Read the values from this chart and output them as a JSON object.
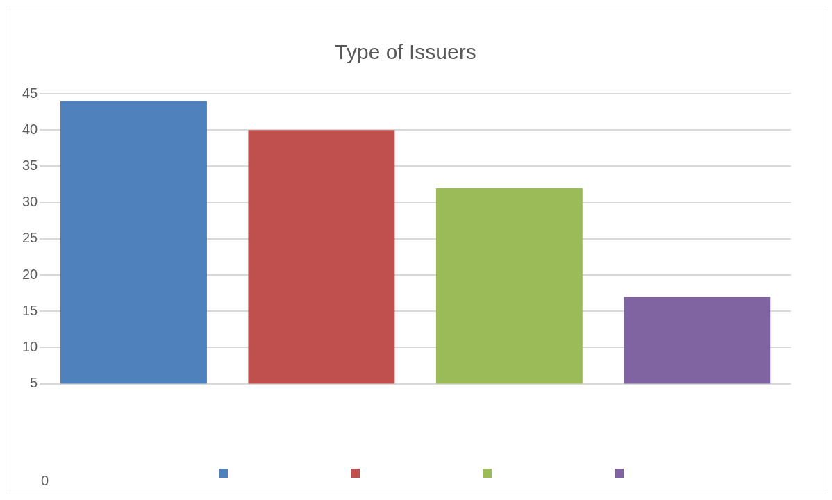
{
  "chart_data": {
    "type": "bar",
    "title": "Type of Issuers",
    "categories": [
      null,
      null,
      null,
      null
    ],
    "values": [
      44,
      40,
      32,
      17
    ],
    "colors": [
      "#4f81bd",
      "#c0504d",
      "#9bbb59",
      "#8064a2"
    ],
    "ylim": [
      5,
      45
    ],
    "yticks": [
      5,
      10,
      15,
      20,
      25,
      30,
      35,
      40,
      45
    ],
    "grid": "y",
    "annotations": [
      "0"
    ]
  }
}
